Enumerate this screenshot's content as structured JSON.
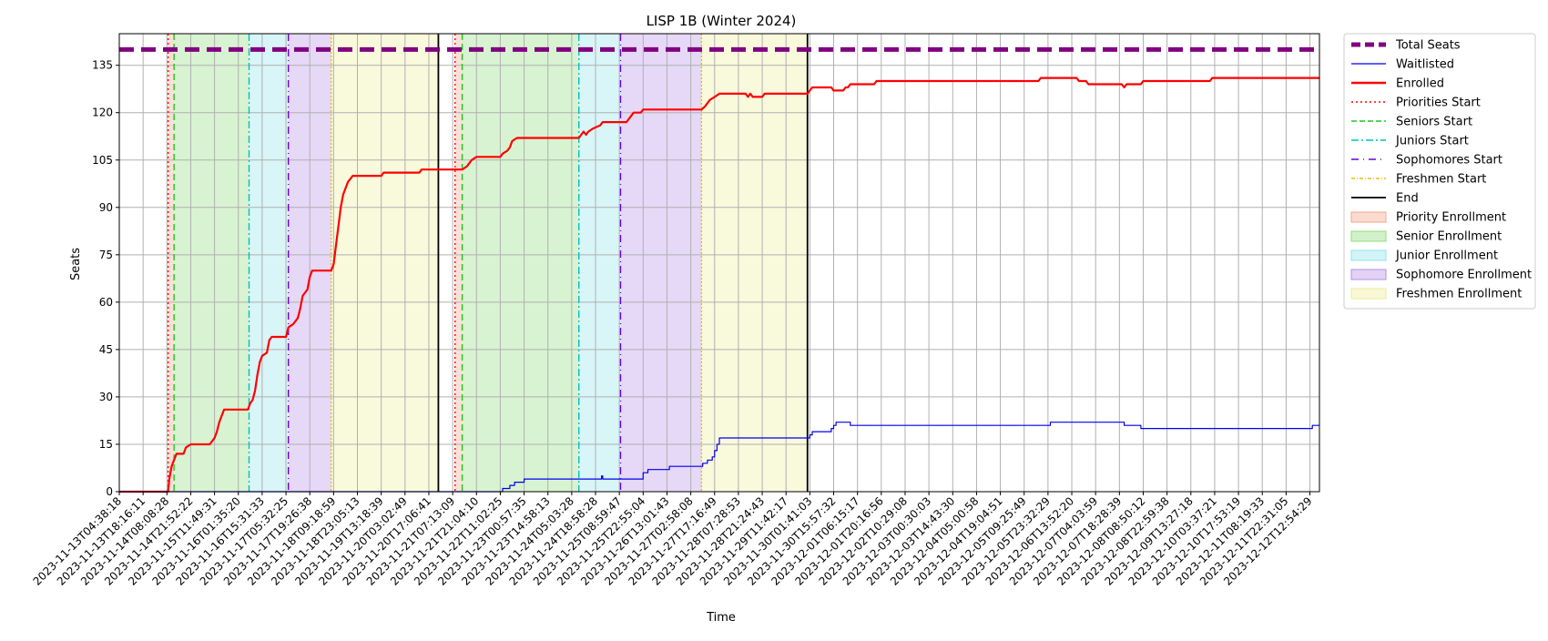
{
  "chart_data": {
    "type": "line",
    "title": "LISP 1B (Winter 2024)",
    "xlabel": "Time",
    "ylabel": "Seats",
    "ylim": [
      0,
      145
    ],
    "yticks": [
      0,
      15,
      30,
      45,
      60,
      75,
      90,
      105,
      120,
      135
    ],
    "grid": true,
    "legend_position": "outside right, top",
    "x_tick_labels": [
      "2023-11-13T04:38:18",
      "2023-11-13T18:16:11",
      "2023-11-14T08:08:28",
      "2023-11-14T21:52:22",
      "2023-11-15T11:49:31",
      "2023-11-16T01:35:20",
      "2023-11-16T15:31:33",
      "2023-11-17T05:32:25",
      "2023-11-17T19:26:38",
      "2023-11-18T09:18:59",
      "2023-11-18T23:05:13",
      "2023-11-19T13:18:39",
      "2023-11-20T03:02:49",
      "2023-11-20T17:06:41",
      "2023-11-21T07:13:09",
      "2023-11-21T21:04:10",
      "2023-11-22T11:02:25",
      "2023-11-23T00:57:35",
      "2023-11-23T14:58:13",
      "2023-11-24T05:03:28",
      "2023-11-24T18:58:28",
      "2023-11-25T08:59:47",
      "2023-11-25T22:55:04",
      "2023-11-26T13:01:43",
      "2023-11-27T02:58:08",
      "2023-11-27T17:16:49",
      "2023-11-28T07:28:53",
      "2023-11-28T21:24:43",
      "2023-11-29T11:42:17",
      "2023-11-30T01:41:03",
      "2023-11-30T15:57:32",
      "2023-12-01T06:15:17",
      "2023-12-01T20:16:56",
      "2023-12-02T10:29:08",
      "2023-12-03T00:30:03",
      "2023-12-03T14:43:30",
      "2023-12-04T05:00:58",
      "2023-12-04T19:04:51",
      "2023-12-05T09:25:49",
      "2023-12-05T23:32:29",
      "2023-12-06T13:52:20",
      "2023-12-07T04:03:59",
      "2023-12-07T18:28:39",
      "2023-12-08T08:50:12",
      "2023-12-08T22:59:38",
      "2023-12-09T13:27:18",
      "2023-12-10T03:37:21",
      "2023-12-10T17:53:19",
      "2023-12-11T08:19:33",
      "2023-12-11T22:31:05",
      "2023-12-12T12:54:29"
    ],
    "x_index_range": [
      0,
      50.4
    ],
    "total_seats": 140,
    "regions": [
      {
        "name": "Priority Enrollment",
        "from": 2.05,
        "to": 2.3,
        "color": "#f4a58a"
      },
      {
        "name": "Senior Enrollment",
        "from": 2.3,
        "to": 5.45,
        "color": "#8fdc7a"
      },
      {
        "name": "Junior Enrollment",
        "from": 5.45,
        "to": 7.1,
        "color": "#8fe3ea"
      },
      {
        "name": "Sophomore Enrollment",
        "from": 7.1,
        "to": 8.9,
        "color": "#b78ee8"
      },
      {
        "name": "Freshmen Enrollment",
        "from": 8.9,
        "to": 13.4,
        "color": "#eeee9a"
      },
      {
        "name": "Priority Enrollment",
        "from": 14.1,
        "to": 14.4,
        "color": "#f4a58a"
      },
      {
        "name": "Senior Enrollment",
        "from": 14.4,
        "to": 19.3,
        "color": "#8fdc7a"
      },
      {
        "name": "Junior Enrollment",
        "from": 19.3,
        "to": 21.05,
        "color": "#8fe3ea"
      },
      {
        "name": "Sophomore Enrollment",
        "from": 21.05,
        "to": 24.45,
        "color": "#b78ee8"
      },
      {
        "name": "Freshmen Enrollment",
        "from": 24.45,
        "to": 28.9,
        "color": "#eeee9a"
      }
    ],
    "vlines": [
      {
        "name": "Priorities Start",
        "x": 2.05,
        "color": "#ff0000",
        "dash": "2,3"
      },
      {
        "name": "Seniors Start",
        "x": 2.3,
        "color": "#22c322",
        "dash": "7,4"
      },
      {
        "name": "Juniors Start",
        "x": 5.45,
        "color": "#00bfbf",
        "dash": "8,3,2,3"
      },
      {
        "name": "Sophomores Start",
        "x": 7.1,
        "color": "#6a00e0",
        "dash": "8,4,1,4"
      },
      {
        "name": "Freshmen Start",
        "x": 8.9,
        "color": "#e6c200",
        "dash": "2,2"
      },
      {
        "name": "End",
        "x": 13.4,
        "color": "#000000",
        "dash": ""
      },
      {
        "name": "Priorities Start",
        "x": 14.1,
        "color": "#ff0000",
        "dash": "2,3"
      },
      {
        "name": "Seniors Start",
        "x": 14.4,
        "color": "#22c322",
        "dash": "7,4"
      },
      {
        "name": "Juniors Start",
        "x": 19.3,
        "color": "#00bfbf",
        "dash": "8,3,2,3"
      },
      {
        "name": "Sophomores Start",
        "x": 21.05,
        "color": "#6a00e0",
        "dash": "8,4,1,4"
      },
      {
        "name": "Freshmen Start",
        "x": 24.45,
        "color": "#e6c200",
        "dash": "2,2"
      },
      {
        "name": "End",
        "x": 28.9,
        "color": "#000000",
        "dash": ""
      }
    ],
    "series": [
      {
        "name": "Enrolled",
        "color": "#ff0000",
        "width": 2.2,
        "step": false,
        "points": [
          [
            0,
            0
          ],
          [
            2.05,
            0
          ],
          [
            2.1,
            4
          ],
          [
            2.2,
            8
          ],
          [
            2.3,
            10
          ],
          [
            2.4,
            12
          ],
          [
            2.7,
            12
          ],
          [
            2.8,
            14
          ],
          [
            3.0,
            15
          ],
          [
            3.8,
            15
          ],
          [
            3.9,
            16
          ],
          [
            4.0,
            17
          ],
          [
            4.1,
            19
          ],
          [
            4.2,
            22
          ],
          [
            4.3,
            24
          ],
          [
            4.4,
            26
          ],
          [
            5.4,
            26
          ],
          [
            5.5,
            28
          ],
          [
            5.6,
            29
          ],
          [
            5.7,
            32
          ],
          [
            5.8,
            37
          ],
          [
            5.9,
            41
          ],
          [
            6.0,
            43
          ],
          [
            6.2,
            44
          ],
          [
            6.3,
            48
          ],
          [
            6.4,
            49
          ],
          [
            7.0,
            49
          ],
          [
            7.1,
            52
          ],
          [
            7.3,
            53
          ],
          [
            7.5,
            55
          ],
          [
            7.6,
            58
          ],
          [
            7.7,
            62
          ],
          [
            7.9,
            64
          ],
          [
            8.0,
            68
          ],
          [
            8.1,
            70
          ],
          [
            8.9,
            70
          ],
          [
            9.0,
            72
          ],
          [
            9.1,
            78
          ],
          [
            9.2,
            84
          ],
          [
            9.3,
            90
          ],
          [
            9.4,
            94
          ],
          [
            9.5,
            96
          ],
          [
            9.6,
            98
          ],
          [
            9.7,
            99
          ],
          [
            9.8,
            100
          ],
          [
            11.0,
            100
          ],
          [
            11.1,
            101
          ],
          [
            12.6,
            101
          ],
          [
            12.7,
            102
          ],
          [
            14.4,
            102
          ],
          [
            14.6,
            103
          ],
          [
            14.7,
            104
          ],
          [
            14.8,
            105
          ],
          [
            15.0,
            106
          ],
          [
            16.0,
            106
          ],
          [
            16.1,
            107
          ],
          [
            16.3,
            108
          ],
          [
            16.4,
            109
          ],
          [
            16.5,
            111
          ],
          [
            16.7,
            112
          ],
          [
            19.3,
            112
          ],
          [
            19.4,
            113
          ],
          [
            19.5,
            114
          ],
          [
            19.6,
            113
          ],
          [
            19.7,
            114
          ],
          [
            19.9,
            115
          ],
          [
            20.2,
            116
          ],
          [
            20.3,
            117
          ],
          [
            21.3,
            117
          ],
          [
            21.4,
            118
          ],
          [
            21.5,
            119
          ],
          [
            21.6,
            120
          ],
          [
            21.9,
            120
          ],
          [
            22.0,
            121
          ],
          [
            24.45,
            121
          ],
          [
            24.6,
            122
          ],
          [
            24.7,
            123
          ],
          [
            24.8,
            124
          ],
          [
            25.0,
            125
          ],
          [
            25.2,
            126
          ],
          [
            26.3,
            126
          ],
          [
            26.4,
            125
          ],
          [
            26.5,
            126
          ],
          [
            26.6,
            125
          ],
          [
            27.0,
            125
          ],
          [
            27.1,
            126
          ],
          [
            28.9,
            126
          ],
          [
            29.0,
            127
          ],
          [
            29.1,
            128
          ],
          [
            29.9,
            128
          ],
          [
            30.0,
            127
          ],
          [
            30.4,
            127
          ],
          [
            30.5,
            128
          ],
          [
            30.6,
            128
          ],
          [
            30.7,
            129
          ],
          [
            31.7,
            129
          ],
          [
            31.8,
            130
          ],
          [
            38.6,
            130
          ],
          [
            38.7,
            131
          ],
          [
            40.2,
            131
          ],
          [
            40.3,
            130
          ],
          [
            40.6,
            130
          ],
          [
            40.7,
            129
          ],
          [
            42.1,
            129
          ],
          [
            42.2,
            128
          ],
          [
            42.3,
            129
          ],
          [
            42.9,
            129
          ],
          [
            43.0,
            130
          ],
          [
            45.8,
            130
          ],
          [
            45.9,
            131
          ],
          [
            50.4,
            131
          ]
        ]
      },
      {
        "name": "Waitlisted",
        "color": "#0000ee",
        "width": 1.2,
        "step": true,
        "points": [
          [
            0,
            0
          ],
          [
            16.0,
            0
          ],
          [
            16.1,
            1
          ],
          [
            16.4,
            2
          ],
          [
            16.6,
            3
          ],
          [
            17.0,
            4
          ],
          [
            20.2,
            4
          ],
          [
            20.25,
            5
          ],
          [
            20.3,
            4
          ],
          [
            21.8,
            4
          ],
          [
            22.0,
            6
          ],
          [
            22.2,
            7
          ],
          [
            23.0,
            7
          ],
          [
            23.1,
            8
          ],
          [
            24.45,
            8
          ],
          [
            24.5,
            9
          ],
          [
            24.7,
            10
          ],
          [
            24.9,
            11
          ],
          [
            25.0,
            13
          ],
          [
            25.1,
            15
          ],
          [
            25.2,
            17
          ],
          [
            28.9,
            17
          ],
          [
            29.0,
            18
          ],
          [
            29.1,
            19
          ],
          [
            29.8,
            19
          ],
          [
            29.9,
            20
          ],
          [
            30.0,
            21
          ],
          [
            30.1,
            22
          ],
          [
            30.6,
            22
          ],
          [
            30.7,
            21
          ],
          [
            39.0,
            21
          ],
          [
            39.1,
            22
          ],
          [
            42.1,
            22
          ],
          [
            42.2,
            21
          ],
          [
            42.8,
            21
          ],
          [
            42.9,
            20
          ],
          [
            50.0,
            20
          ],
          [
            50.1,
            21
          ],
          [
            50.4,
            21
          ]
        ]
      }
    ],
    "legend": [
      {
        "label": "Total Seats",
        "kind": "line",
        "color": "#800080",
        "width": 5,
        "dash": "10,5"
      },
      {
        "label": "Waitlisted",
        "kind": "line",
        "color": "#0000ee",
        "width": 1.2,
        "dash": ""
      },
      {
        "label": "Enrolled",
        "kind": "line",
        "color": "#ff0000",
        "width": 2.5,
        "dash": ""
      },
      {
        "label": "Priorities Start",
        "kind": "line",
        "color": "#ff0000",
        "width": 1.5,
        "dash": "2,3"
      },
      {
        "label": "Seniors Start",
        "kind": "line",
        "color": "#22c322",
        "width": 1.5,
        "dash": "6,3"
      },
      {
        "label": "Juniors Start",
        "kind": "line",
        "color": "#00bfbf",
        "width": 1.5,
        "dash": "8,3,2,3"
      },
      {
        "label": "Sophomores Start",
        "kind": "line",
        "color": "#6a00e0",
        "width": 1.5,
        "dash": "8,5,1,5"
      },
      {
        "label": "Freshmen Start",
        "kind": "line",
        "color": "#e6c200",
        "width": 1.5,
        "dash": "4,2,1,2"
      },
      {
        "label": "End",
        "kind": "line",
        "color": "#000000",
        "width": 1.8,
        "dash": ""
      },
      {
        "label": "Priority Enrollment",
        "kind": "patch",
        "color": "#f4a58a"
      },
      {
        "label": "Senior Enrollment",
        "kind": "patch",
        "color": "#8fdc7a"
      },
      {
        "label": "Junior Enrollment",
        "kind": "patch",
        "color": "#8fe3ea"
      },
      {
        "label": "Sophomore Enrollment",
        "kind": "patch",
        "color": "#b78ee8"
      },
      {
        "label": "Freshmen Enrollment",
        "kind": "patch",
        "color": "#eeee9a"
      }
    ]
  }
}
